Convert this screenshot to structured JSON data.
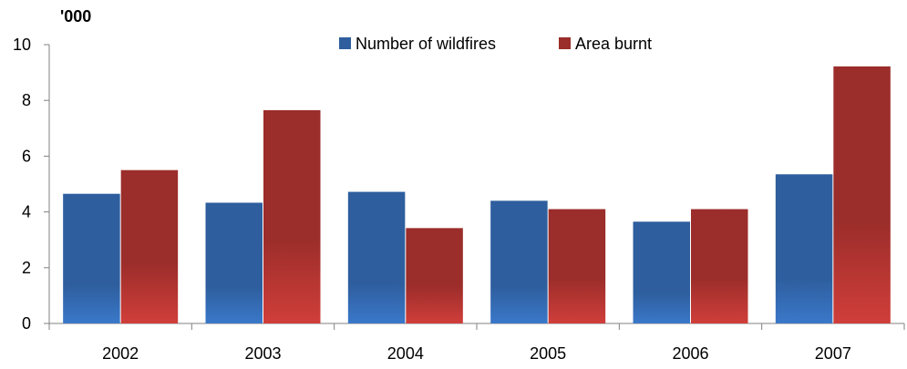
{
  "chart_data": {
    "type": "bar",
    "unit_label": "'000",
    "categories": [
      "2002",
      "2003",
      "2004",
      "2005",
      "2006",
      "2007"
    ],
    "series": [
      {
        "name": "Number of wildfires",
        "values": [
          4.65,
          4.33,
          4.72,
          4.4,
          3.65,
          5.35
        ],
        "color": "#2e5e9e"
      },
      {
        "name": "Area burnt",
        "values": [
          5.5,
          7.65,
          3.42,
          4.1,
          4.1,
          9.22
        ],
        "color": "#9b2d2a"
      }
    ],
    "ylim": [
      0,
      10
    ],
    "yticks": [
      0,
      2,
      4,
      6,
      8,
      10
    ],
    "grid": false,
    "legend_position": "top"
  }
}
